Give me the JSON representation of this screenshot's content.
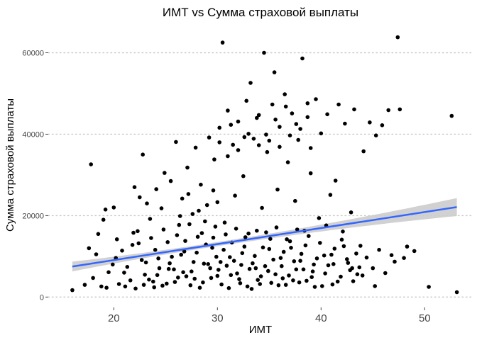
{
  "chart_data": {
    "type": "scatter",
    "title": "ИМТ vs Сумма страховой выплаты",
    "xlabel": "ИМТ",
    "ylabel": "Сумма страховой выплаты",
    "xlim": [
      14.5,
      54.5
    ],
    "ylim": [
      -1500,
      66000
    ],
    "x_ticks": [
      20,
      30,
      40,
      50
    ],
    "y_ticks": [
      0,
      20000,
      40000,
      60000
    ],
    "x_tick_labels": [
      "20",
      "30",
      "40",
      "50"
    ],
    "y_tick_labels": [
      "0",
      "20000",
      "40000",
      "60000"
    ],
    "grid": "horizontal dotted",
    "legend": "none",
    "points": [
      [
        16.0,
        1700
      ],
      [
        17.2,
        3000
      ],
      [
        17.6,
        12000
      ],
      [
        17.8,
        32600
      ],
      [
        18.3,
        10500
      ],
      [
        18.5,
        15500
      ],
      [
        18.8,
        2600
      ],
      [
        19.0,
        19000
      ],
      [
        19.2,
        21500
      ],
      [
        19.9,
        8000
      ],
      [
        20.0,
        22000
      ],
      [
        20.3,
        14200
      ],
      [
        21.0,
        6000
      ],
      [
        21.8,
        12800
      ],
      [
        22.0,
        27000
      ],
      [
        22.3,
        16200
      ],
      [
        22.5,
        24500
      ],
      [
        22.8,
        35000
      ],
      [
        23.0,
        5500
      ],
      [
        23.2,
        23000
      ],
      [
        23.5,
        19200
      ],
      [
        23.8,
        3800
      ],
      [
        24.1,
        26500
      ],
      [
        24.3,
        9500
      ],
      [
        24.6,
        21800
      ],
      [
        24.9,
        30500
      ],
      [
        25.2,
        13500
      ],
      [
        25.5,
        28500
      ],
      [
        25.8,
        6800
      ],
      [
        26.0,
        38100
      ],
      [
        26.3,
        17700
      ],
      [
        26.6,
        24200
      ],
      [
        26.8,
        11200
      ],
      [
        27.1,
        31800
      ],
      [
        27.4,
        2900
      ],
      [
        27.6,
        20400
      ],
      [
        27.9,
        36700
      ],
      [
        28.1,
        14800
      ],
      [
        28.4,
        27600
      ],
      [
        28.7,
        8200
      ],
      [
        29.0,
        22600
      ],
      [
        29.2,
        39200
      ],
      [
        29.5,
        12100
      ],
      [
        29.7,
        33800
      ],
      [
        30.0,
        5200
      ],
      [
        30.2,
        41600
      ],
      [
        30.5,
        62500
      ],
      [
        30.7,
        18300
      ],
      [
        31.0,
        45800
      ],
      [
        31.2,
        9800
      ],
      [
        31.5,
        37400
      ],
      [
        31.7,
        24900
      ],
      [
        32.0,
        43100
      ],
      [
        32.2,
        3400
      ],
      [
        32.5,
        29700
      ],
      [
        32.8,
        48200
      ],
      [
        33.0,
        15600
      ],
      [
        33.2,
        52600
      ],
      [
        33.5,
        38900
      ],
      [
        33.7,
        7100
      ],
      [
        34.0,
        44700
      ],
      [
        34.3,
        21900
      ],
      [
        34.5,
        60000
      ],
      [
        34.8,
        35600
      ],
      [
        35.0,
        11800
      ],
      [
        35.3,
        47300
      ],
      [
        35.5,
        55200
      ],
      [
        35.8,
        26400
      ],
      [
        36.0,
        41800
      ],
      [
        36.3,
        4600
      ],
      [
        36.5,
        49800
      ],
      [
        36.8,
        33100
      ],
      [
        37.0,
        13700
      ],
      [
        37.2,
        45100
      ],
      [
        37.5,
        23600
      ],
      [
        37.8,
        38600
      ],
      [
        38.0,
        8900
      ],
      [
        38.2,
        58600
      ],
      [
        38.4,
        16300
      ],
      [
        38.7,
        44200
      ],
      [
        39.0,
        30400
      ],
      [
        39.2,
        6300
      ],
      [
        39.5,
        48600
      ],
      [
        39.8,
        19400
      ],
      [
        40.0,
        40200
      ],
      [
        40.3,
        10200
      ],
      [
        40.6,
        44900
      ],
      [
        40.9,
        25100
      ],
      [
        41.1,
        3100
      ],
      [
        41.4,
        28600
      ],
      [
        41.7,
        47300
      ],
      [
        42.0,
        14100
      ],
      [
        42.3,
        42600
      ],
      [
        42.6,
        8400
      ],
      [
        42.9,
        20800
      ],
      [
        43.2,
        46100
      ],
      [
        43.5,
        5600
      ],
      [
        43.8,
        12600
      ],
      [
        44.1,
        35800
      ],
      [
        44.4,
        9700
      ],
      [
        44.7,
        42900
      ],
      [
        45.0,
        7100
      ],
      [
        45.3,
        39700
      ],
      [
        45.6,
        11600
      ],
      [
        45.9,
        42200
      ],
      [
        46.2,
        5900
      ],
      [
        46.5,
        45900
      ],
      [
        46.8,
        10300
      ],
      [
        47.1,
        8700
      ],
      [
        47.4,
        63800
      ],
      [
        47.6,
        46100
      ],
      [
        48.0,
        9600
      ],
      [
        48.3,
        12400
      ],
      [
        49.0,
        11300
      ],
      [
        50.4,
        2500
      ],
      [
        52.6,
        44500
      ],
      [
        53.1,
        1200
      ],
      [
        20.5,
        3200
      ],
      [
        21.3,
        7400
      ],
      [
        22.1,
        2100
      ],
      [
        22.7,
        9100
      ],
      [
        23.4,
        4300
      ],
      [
        24.0,
        11600
      ],
      [
        24.7,
        2800
      ],
      [
        25.3,
        6900
      ],
      [
        25.9,
        3700
      ],
      [
        26.5,
        10400
      ],
      [
        27.0,
        5100
      ],
      [
        27.7,
        8600
      ],
      [
        28.3,
        2300
      ],
      [
        28.9,
        12900
      ],
      [
        29.4,
        4700
      ],
      [
        29.9,
        9900
      ],
      [
        30.4,
        3100
      ],
      [
        30.9,
        7700
      ],
      [
        31.4,
        13400
      ],
      [
        31.9,
        5800
      ],
      [
        32.4,
        10800
      ],
      [
        32.9,
        2600
      ],
      [
        33.4,
        8300
      ],
      [
        33.9,
        4200
      ],
      [
        34.4,
        12200
      ],
      [
        34.9,
        6400
      ],
      [
        35.4,
        9200
      ],
      [
        35.9,
        2900
      ],
      [
        36.4,
        11100
      ],
      [
        36.9,
        5300
      ],
      [
        37.4,
        8800
      ],
      [
        37.9,
        3600
      ],
      [
        38.5,
        12700
      ],
      [
        39.1,
        4900
      ],
      [
        39.6,
        9500
      ],
      [
        40.1,
        2700
      ],
      [
        40.7,
        7800
      ],
      [
        41.3,
        11900
      ],
      [
        41.9,
        5000
      ],
      [
        42.5,
        9300
      ],
      [
        43.1,
        3900
      ],
      [
        43.7,
        7300
      ],
      [
        19.5,
        6100
      ],
      [
        20.8,
        11400
      ],
      [
        21.6,
        4100
      ],
      [
        22.4,
        13200
      ],
      [
        23.1,
        8500
      ],
      [
        23.9,
        2400
      ],
      [
        24.4,
        7100
      ],
      [
        25.1,
        3300
      ],
      [
        25.6,
        9900
      ],
      [
        26.2,
        4800
      ],
      [
        26.9,
        13800
      ],
      [
        27.5,
        6300
      ],
      [
        28.0,
        10900
      ],
      [
        28.6,
        3600
      ],
      [
        29.1,
        8100
      ],
      [
        29.6,
        14600
      ],
      [
        30.1,
        6700
      ],
      [
        30.6,
        11600
      ],
      [
        31.1,
        2200
      ],
      [
        31.6,
        8900
      ],
      [
        32.1,
        4400
      ],
      [
        32.6,
        12400
      ],
      [
        33.1,
        6900
      ],
      [
        33.6,
        10100
      ],
      [
        34.1,
        3200
      ],
      [
        34.6,
        7600
      ],
      [
        35.1,
        14300
      ],
      [
        35.6,
        5600
      ],
      [
        36.1,
        9600
      ],
      [
        36.6,
        3000
      ],
      [
        37.1,
        12100
      ],
      [
        37.6,
        6800
      ],
      [
        38.1,
        10600
      ],
      [
        38.6,
        4000
      ],
      [
        39.3,
        8000
      ],
      [
        39.9,
        13300
      ],
      [
        40.4,
        5800
      ],
      [
        41.0,
        10400
      ],
      [
        41.6,
        3800
      ],
      [
        42.2,
        12500
      ],
      [
        42.8,
        6600
      ],
      [
        43.4,
        10700
      ],
      [
        18.0,
        4700
      ],
      [
        19.3,
        2300
      ],
      [
        20.2,
        9600
      ],
      [
        21.1,
        2600
      ],
      [
        21.9,
        15800
      ],
      [
        22.9,
        3000
      ],
      [
        23.6,
        14500
      ],
      [
        24.2,
        5400
      ],
      [
        24.8,
        16600
      ],
      [
        25.4,
        8300
      ],
      [
        26.1,
        15200
      ],
      [
        26.7,
        6100
      ],
      [
        27.3,
        17900
      ],
      [
        27.8,
        4500
      ],
      [
        28.5,
        15700
      ],
      [
        29.3,
        7100
      ],
      [
        29.8,
        17300
      ],
      [
        30.3,
        8600
      ],
      [
        30.8,
        15400
      ],
      [
        31.3,
        5400
      ],
      [
        31.8,
        16800
      ],
      [
        32.3,
        7900
      ],
      [
        32.7,
        14700
      ],
      [
        33.3,
        2000
      ],
      [
        33.8,
        16300
      ],
      [
        34.2,
        5100
      ],
      [
        34.7,
        15900
      ],
      [
        35.2,
        3500
      ],
      [
        35.7,
        17100
      ],
      [
        36.2,
        7600
      ],
      [
        36.7,
        14200
      ],
      [
        37.3,
        4100
      ],
      [
        37.7,
        16600
      ],
      [
        38.3,
        6800
      ],
      [
        38.8,
        15000
      ],
      [
        39.4,
        2500
      ],
      [
        40.5,
        17600
      ],
      [
        41.2,
        8100
      ],
      [
        42.1,
        16100
      ],
      [
        43.0,
        7100
      ],
      [
        44.0,
        5300
      ],
      [
        45.2,
        2700
      ],
      [
        26.4,
        19900
      ],
      [
        27.2,
        25300
      ],
      [
        28.2,
        21200
      ],
      [
        28.8,
        18600
      ],
      [
        29.6,
        26200
      ],
      [
        30.0,
        23300
      ],
      [
        31.0,
        34600
      ],
      [
        32.0,
        36100
      ],
      [
        33.0,
        40100
      ],
      [
        34.0,
        37300
      ],
      [
        35.0,
        38400
      ],
      [
        36.0,
        36900
      ],
      [
        37.0,
        39700
      ],
      [
        38.0,
        41300
      ],
      [
        39.0,
        36600
      ],
      [
        35.6,
        43600
      ],
      [
        36.6,
        46800
      ],
      [
        37.6,
        42500
      ],
      [
        32.6,
        39300
      ],
      [
        31.3,
        42300
      ],
      [
        30.2,
        38000
      ],
      [
        33.8,
        44000
      ],
      [
        34.7,
        39900
      ],
      [
        38.7,
        47600
      ]
    ],
    "trend_line": {
      "type": "linear",
      "color": "#3366ff",
      "x": [
        16.0,
        53.1
      ],
      "y": [
        7500,
        22100
      ],
      "band_color": "#cccccc",
      "band_halfwidth_start": 1200,
      "band_halfwidth_mid": 500,
      "band_halfwidth_end": 2200
    }
  }
}
